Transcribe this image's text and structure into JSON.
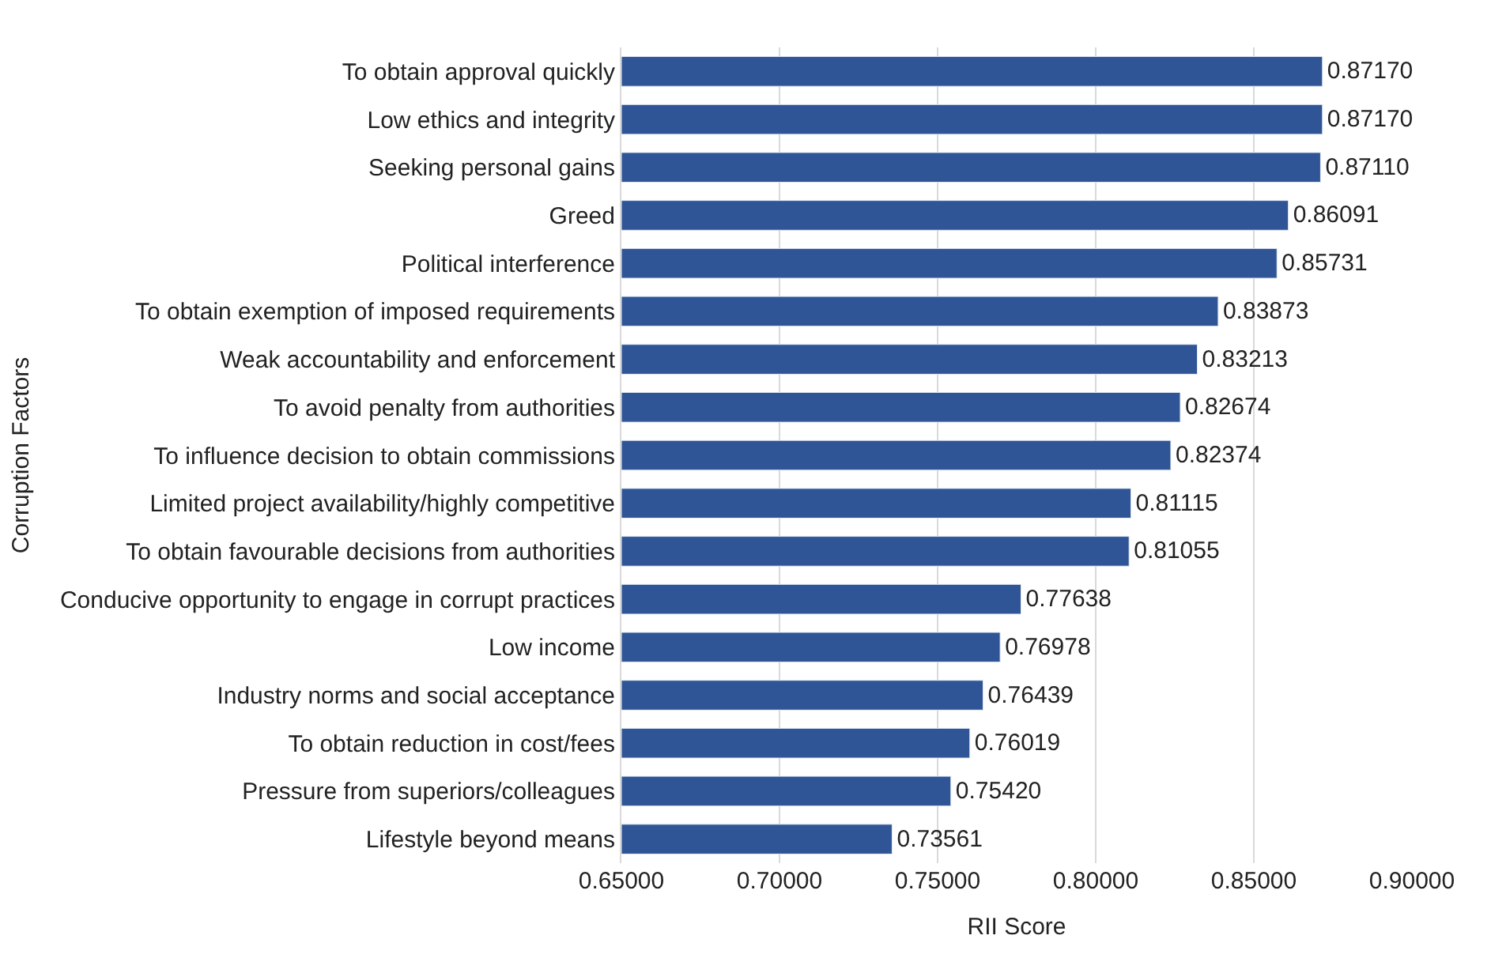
{
  "chart_data": {
    "type": "bar",
    "orientation": "horizontal",
    "xlabel": "RII Score",
    "ylabel": "Corruption Factors",
    "categories": [
      "To obtain approval quickly",
      "Low ethics and integrity",
      "Seeking personal gains",
      "Greed",
      "Political interference",
      "To obtain exemption of imposed requirements",
      "Weak accountability and enforcement",
      "To avoid penalty from authorities",
      "To influence decision to obtain commissions",
      "Limited project availability/highly competitive",
      "To obtain favourable decisions from authorities",
      "Conducive opportunity to engage in corrupt practices",
      "Low income",
      "Industry norms and social acceptance",
      "To obtain reduction in cost/fees",
      "Pressure from superiors/colleagues",
      "Lifestyle beyond means"
    ],
    "values": [
      0.8717,
      0.8717,
      0.8711,
      0.86091,
      0.85731,
      0.83873,
      0.83213,
      0.82674,
      0.82374,
      0.81115,
      0.81055,
      0.77638,
      0.76978,
      0.76439,
      0.76019,
      0.7542,
      0.73561
    ],
    "value_labels": [
      "0.87170",
      "0.87170",
      "0.87110",
      "0.86091",
      "0.85731",
      "0.83873",
      "0.83213",
      "0.82674",
      "0.82374",
      "0.81115",
      "0.81055",
      "0.77638",
      "0.76978",
      "0.76439",
      "0.76019",
      "0.75420",
      "0.73561"
    ],
    "color": "#2f5597",
    "xlim": [
      0.65,
      0.9
    ],
    "xticks": [
      {
        "value": 0.65,
        "label": "0.65000"
      },
      {
        "value": 0.7,
        "label": "0.70000"
      },
      {
        "value": 0.75,
        "label": "0.75000"
      },
      {
        "value": 0.8,
        "label": "0.80000"
      },
      {
        "value": 0.85,
        "label": "0.85000"
      },
      {
        "value": 0.9,
        "label": "0.90000"
      }
    ],
    "grid": "x",
    "legend": false
  }
}
